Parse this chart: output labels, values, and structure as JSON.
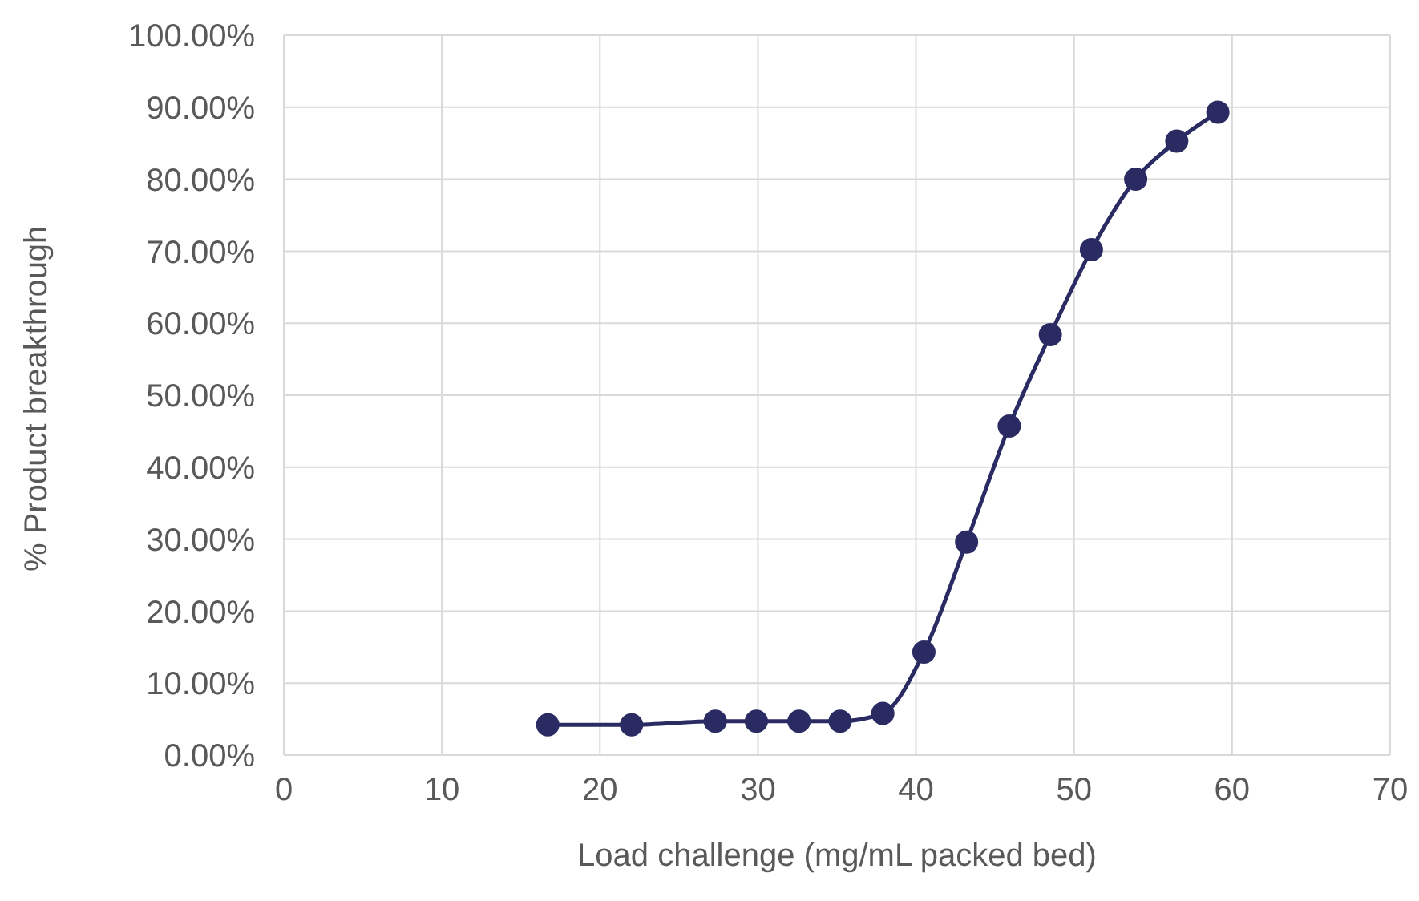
{
  "chart_data": {
    "type": "line",
    "xlabel": "Load challenge (mg/mL packed bed)",
    "ylabel": "% Product breakthrough",
    "x": [
      16.7,
      22.0,
      27.3,
      29.9,
      32.6,
      35.2,
      37.9,
      40.5,
      43.2,
      45.9,
      48.5,
      51.1,
      53.9,
      56.5,
      59.1
    ],
    "series": [
      {
        "color": "#2b2b63",
        "values": [
          4.2,
          4.2,
          4.7,
          4.7,
          4.7,
          4.7,
          5.8,
          14.3,
          29.6,
          45.7,
          58.4,
          70.2,
          80.0,
          85.3,
          89.3
        ]
      }
    ],
    "xlim": [
      0,
      70
    ],
    "xticks": [
      0,
      10,
      20,
      30,
      40,
      50,
      60,
      70
    ],
    "ylim": [
      0,
      100
    ],
    "yticks": [
      {
        "value": 0,
        "label": "0.00%"
      },
      {
        "value": 10,
        "label": "10.00%"
      },
      {
        "value": 20,
        "label": "20.00%"
      },
      {
        "value": 30,
        "label": "30.00%"
      },
      {
        "value": 40,
        "label": "40.00%"
      },
      {
        "value": 50,
        "label": "50.00%"
      },
      {
        "value": 60,
        "label": "60.00%"
      },
      {
        "value": 70,
        "label": "70.00%"
      },
      {
        "value": 80,
        "label": "80.00%"
      },
      {
        "value": 90,
        "label": "90.00%"
      },
      {
        "value": 100,
        "label": "100.00%"
      }
    ],
    "grid": true,
    "marker": "circle",
    "line_style": "solid"
  }
}
